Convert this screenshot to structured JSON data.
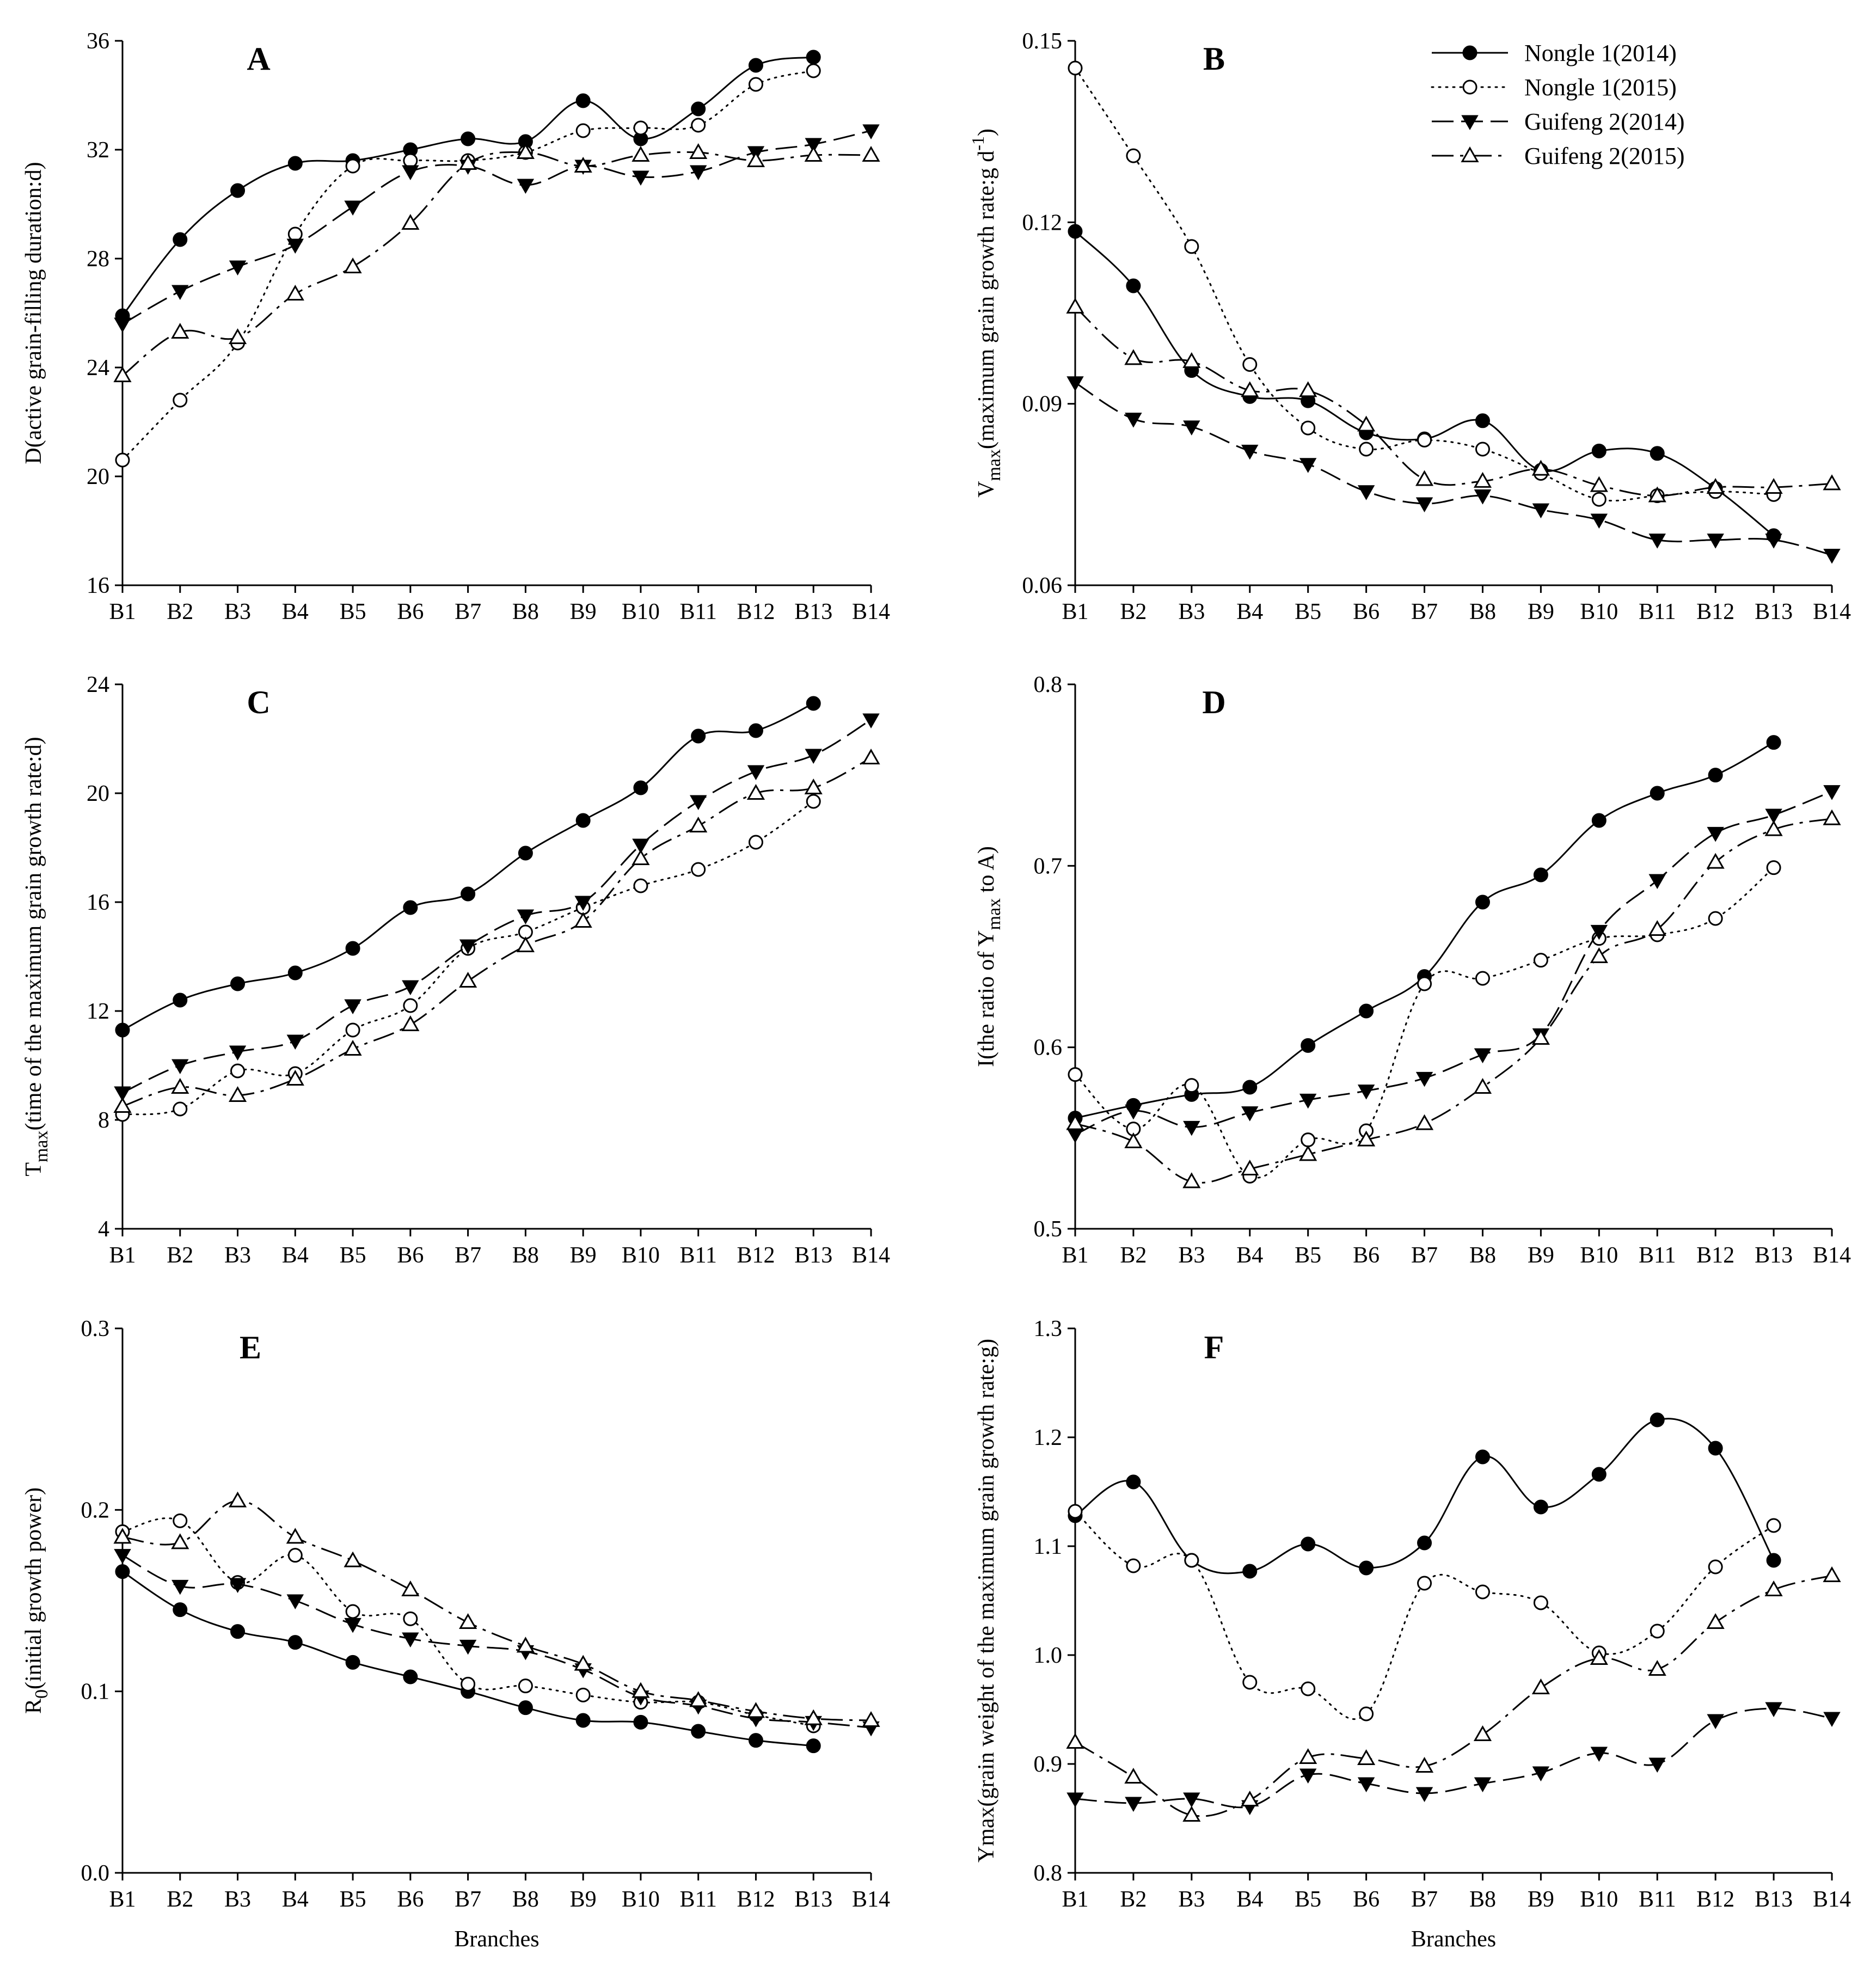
{
  "figure": {
    "legend": [
      {
        "label": "Nongle 1(2014)",
        "style": "solid",
        "marker": "filled-circle"
      },
      {
        "label": "Nongle 1(2015)",
        "style": "dotted",
        "marker": "open-circle"
      },
      {
        "label": "Guifeng 2(2014)",
        "style": "dashed",
        "marker": "filled-triangle-down"
      },
      {
        "label": "Guifeng 2(2015)",
        "style": "dashdot",
        "marker": "open-triangle-up"
      }
    ]
  },
  "chart_data": [
    {
      "type": "line",
      "panel": "A",
      "ylabel": "D(active grain-filling duration:d)",
      "xlabel": "",
      "categories": [
        "B1",
        "B2",
        "B3",
        "B4",
        "B5",
        "B6",
        "B7",
        "B8",
        "B9",
        "B10",
        "B11",
        "B12",
        "B13",
        "B14"
      ],
      "ylim": [
        16,
        36
      ],
      "yticks": [
        16,
        20,
        24,
        28,
        32,
        36
      ],
      "ytick_labels": [
        "16",
        "20",
        "24",
        "28",
        "32",
        "36"
      ],
      "series": [
        {
          "name": "Nongle 1(2014)",
          "values": [
            25.9,
            28.7,
            30.5,
            31.5,
            31.6,
            32.0,
            32.4,
            32.3,
            33.8,
            32.4,
            33.5,
            35.1,
            35.4,
            null
          ]
        },
        {
          "name": "Nongle 1(2015)",
          "values": [
            20.6,
            22.8,
            24.9,
            28.9,
            31.4,
            31.6,
            31.6,
            31.9,
            32.7,
            32.8,
            32.9,
            34.4,
            34.9,
            null
          ]
        },
        {
          "name": "Guifeng 2(2014)",
          "values": [
            25.6,
            26.8,
            27.7,
            28.5,
            29.9,
            31.2,
            31.4,
            30.7,
            31.4,
            31.0,
            31.2,
            31.9,
            32.2,
            32.7
          ]
        },
        {
          "name": "Guifeng 2(2015)",
          "values": [
            23.7,
            25.3,
            25.1,
            26.7,
            27.7,
            29.3,
            31.5,
            31.9,
            31.4,
            31.8,
            31.9,
            31.6,
            31.8,
            31.8
          ]
        }
      ]
    },
    {
      "type": "line",
      "panel": "B",
      "ylabel": "Vmax(maximum grain growth rate:g d-1)",
      "ylabel_main": "V",
      "ylabel_sub": "max",
      "ylabel_rest": "(maximum grain growth rate:g d",
      "ylabel_sup": "-1",
      "ylabel_end": ")",
      "xlabel": "",
      "categories": [
        "B1",
        "B2",
        "B3",
        "B4",
        "B5",
        "B6",
        "B7",
        "B8",
        "B9",
        "B10",
        "B11",
        "B12",
        "B13",
        "B14"
      ],
      "ylim": [
        0.06,
        0.15
      ],
      "yticks": [
        0.06,
        0.09,
        0.12,
        0.15
      ],
      "ytick_labels": [
        "0.06",
        "0.09",
        "0.12",
        "0.15"
      ],
      "series": [
        {
          "name": "Nongle 1(2014)",
          "values": [
            0.1185,
            0.1095,
            0.0955,
            0.0912,
            0.0905,
            0.0852,
            0.0842,
            0.0872,
            0.079,
            0.0822,
            0.0818,
            0.076,
            0.0682,
            null
          ]
        },
        {
          "name": "Nongle 1(2015)",
          "values": [
            0.1455,
            0.131,
            0.116,
            0.0965,
            0.086,
            0.0825,
            0.084,
            0.0825,
            0.0785,
            0.0742,
            0.0748,
            0.0755,
            0.075,
            null
          ]
        },
        {
          "name": "Guifeng 2(2014)",
          "values": [
            0.0935,
            0.0875,
            0.0862,
            0.0822,
            0.08,
            0.0755,
            0.0735,
            0.0748,
            0.0725,
            0.0708,
            0.0675,
            0.0675,
            0.0675,
            0.065
          ]
        },
        {
          "name": "Guifeng 2(2015)",
          "values": [
            0.106,
            0.0975,
            0.097,
            0.0922,
            0.0922,
            0.0865,
            0.0775,
            0.0772,
            0.0792,
            0.0765,
            0.0748,
            0.0762,
            0.0762,
            0.0768
          ]
        }
      ]
    },
    {
      "type": "line",
      "panel": "C",
      "ylabel": "Tmax(time of the maximum grain growth rate:d)",
      "ylabel_main": "T",
      "ylabel_sub": "max",
      "ylabel_rest": "(time of the maximum grain growth rate:d)",
      "xlabel": "",
      "categories": [
        "B1",
        "B2",
        "B3",
        "B4",
        "B5",
        "B6",
        "B7",
        "B8",
        "B9",
        "B10",
        "B11",
        "B12",
        "B13",
        "B14"
      ],
      "ylim": [
        4,
        24
      ],
      "yticks": [
        4,
        8,
        12,
        16,
        20,
        24
      ],
      "ytick_labels": [
        "4",
        "8",
        "12",
        "16",
        "20",
        "24"
      ],
      "series": [
        {
          "name": "Nongle 1(2014)",
          "values": [
            11.3,
            12.4,
            13.0,
            13.4,
            14.3,
            15.8,
            16.3,
            17.8,
            19.0,
            20.2,
            22.1,
            22.3,
            23.3,
            null
          ]
        },
        {
          "name": "Nongle 1(2015)",
          "values": [
            8.2,
            8.4,
            9.8,
            9.7,
            11.3,
            12.2,
            14.3,
            14.9,
            15.8,
            16.6,
            17.2,
            18.2,
            19.7,
            null
          ]
        },
        {
          "name": "Guifeng 2(2014)",
          "values": [
            9.0,
            10.0,
            10.5,
            10.9,
            12.2,
            12.9,
            14.4,
            15.5,
            16.0,
            18.1,
            19.7,
            20.8,
            21.4,
            22.7
          ]
        },
        {
          "name": "Guifeng 2(2015)",
          "values": [
            8.5,
            9.2,
            8.9,
            9.5,
            10.6,
            11.5,
            13.1,
            14.4,
            15.3,
            17.6,
            18.8,
            20.0,
            20.2,
            21.3
          ]
        }
      ]
    },
    {
      "type": "line",
      "panel": "D",
      "ylabel": "I(the ratio of Ymax to A)",
      "ylabel_main": "I(the ratio of Y",
      "ylabel_sub": "max",
      "ylabel_rest": " to A)",
      "xlabel": "",
      "categories": [
        "B1",
        "B2",
        "B3",
        "B4",
        "B5",
        "B6",
        "B7",
        "B8",
        "B9",
        "B10",
        "B11",
        "B12",
        "B13",
        "B14"
      ],
      "ylim": [
        0.5,
        0.8
      ],
      "yticks": [
        0.5,
        0.6,
        0.7,
        0.8
      ],
      "ytick_labels": [
        "0.5",
        "0.6",
        "0.7",
        "0.8"
      ],
      "series": [
        {
          "name": "Nongle 1(2014)",
          "values": [
            0.561,
            0.568,
            0.574,
            0.578,
            0.601,
            0.62,
            0.639,
            0.68,
            0.695,
            0.725,
            0.74,
            0.75,
            0.768,
            null
          ]
        },
        {
          "name": "Nongle 1(2015)",
          "values": [
            0.585,
            0.555,
            0.579,
            0.529,
            0.549,
            0.554,
            0.635,
            0.638,
            0.648,
            0.66,
            0.662,
            0.671,
            0.699,
            null
          ]
        },
        {
          "name": "Guifeng 2(2014)",
          "values": [
            0.552,
            0.565,
            0.556,
            0.564,
            0.571,
            0.576,
            0.583,
            0.596,
            0.607,
            0.664,
            0.692,
            0.718,
            0.728,
            0.741
          ]
        },
        {
          "name": "Guifeng 2(2015)",
          "values": [
            0.558,
            0.548,
            0.526,
            0.533,
            0.541,
            0.549,
            0.558,
            0.578,
            0.605,
            0.65,
            0.665,
            0.702,
            0.72,
            0.726
          ]
        }
      ]
    },
    {
      "type": "line",
      "panel": "E",
      "ylabel": "R0(initial growth power)",
      "ylabel_main": "R",
      "ylabel_sub": "0",
      "ylabel_rest": "(initial growth power)",
      "xlabel": "Branches",
      "categories": [
        "B1",
        "B2",
        "B3",
        "B4",
        "B5",
        "B6",
        "B7",
        "B8",
        "B9",
        "B10",
        "B11",
        "B12",
        "B13",
        "B14"
      ],
      "ylim": [
        0.0,
        0.3
      ],
      "yticks": [
        0.0,
        0.1,
        0.2,
        0.3
      ],
      "ytick_labels": [
        "0.0",
        "0.1",
        "0.2",
        "0.3"
      ],
      "series": [
        {
          "name": "Nongle 1(2014)",
          "values": [
            0.166,
            0.145,
            0.133,
            0.127,
            0.116,
            0.108,
            0.1,
            0.091,
            0.084,
            0.083,
            0.078,
            0.073,
            0.07,
            null
          ]
        },
        {
          "name": "Nongle 1(2015)",
          "values": [
            0.188,
            0.194,
            0.16,
            0.175,
            0.144,
            0.14,
            0.104,
            0.103,
            0.098,
            0.094,
            0.094,
            0.087,
            0.081,
            null
          ]
        },
        {
          "name": "Guifeng 2(2014)",
          "values": [
            0.175,
            0.158,
            0.159,
            0.15,
            0.137,
            0.129,
            0.125,
            0.122,
            0.112,
            0.097,
            0.092,
            0.085,
            0.083,
            0.08
          ]
        },
        {
          "name": "Guifeng 2(2015)",
          "values": [
            0.185,
            0.182,
            0.205,
            0.185,
            0.172,
            0.156,
            0.138,
            0.125,
            0.115,
            0.1,
            0.095,
            0.089,
            0.085,
            0.084
          ]
        }
      ]
    },
    {
      "type": "line",
      "panel": "F",
      "ylabel": "Ymax(grain weight of the maximum grain growth rate:g)",
      "xlabel": "Branches",
      "categories": [
        "B1",
        "B2",
        "B3",
        "B4",
        "B5",
        "B6",
        "B7",
        "B8",
        "B9",
        "B10",
        "B11",
        "B12",
        "B13",
        "B14"
      ],
      "ylim": [
        0.8,
        1.3
      ],
      "yticks": [
        0.8,
        0.9,
        1.0,
        1.1,
        1.2,
        1.3
      ],
      "ytick_labels": [
        "0.8",
        "0.9",
        "1.0",
        "1.1",
        "1.2",
        "1.3"
      ],
      "series": [
        {
          "name": "Nongle 1(2014)",
          "values": [
            1.128,
            1.159,
            1.087,
            1.077,
            1.102,
            1.08,
            1.103,
            1.182,
            1.136,
            1.166,
            1.216,
            1.19,
            1.087,
            null
          ]
        },
        {
          "name": "Nongle 1(2015)",
          "values": [
            1.132,
            1.082,
            1.087,
            0.975,
            0.969,
            0.946,
            1.066,
            1.058,
            1.048,
            1.002,
            1.022,
            1.081,
            1.119,
            null
          ]
        },
        {
          "name": "Guifeng 2(2014)",
          "values": [
            0.868,
            0.864,
            0.868,
            0.861,
            0.89,
            0.882,
            0.873,
            0.882,
            0.892,
            0.91,
            0.9,
            0.94,
            0.951,
            0.942
          ]
        },
        {
          "name": "Guifeng 2(2015)",
          "values": [
            0.92,
            0.888,
            0.853,
            0.867,
            0.906,
            0.905,
            0.898,
            0.927,
            0.97,
            0.997,
            0.987,
            1.03,
            1.06,
            1.073
          ]
        }
      ]
    }
  ]
}
